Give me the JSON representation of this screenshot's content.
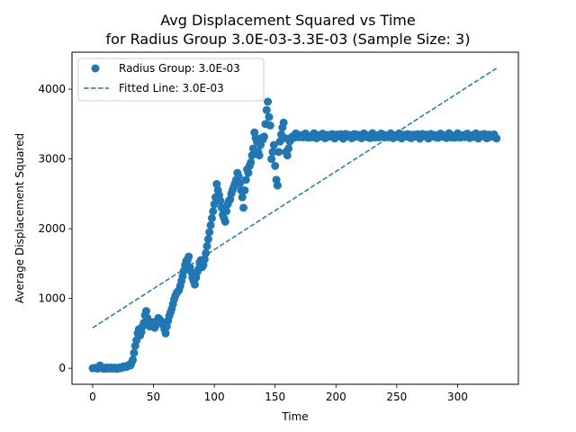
{
  "chart_data": {
    "type": "scatter",
    "title_line1": "Avg Displacement Squared vs Time",
    "title_line2": "for Radius Group 3.0E-03-3.3E-03 (Sample Size: 3)",
    "xlabel": "Time",
    "ylabel": "Average Displacement Squared",
    "xlim": [
      -17,
      350
    ],
    "ylim": [
      -230,
      4530
    ],
    "xticks": [
      0,
      50,
      100,
      150,
      200,
      250,
      300
    ],
    "yticks": [
      0,
      1000,
      2000,
      3000,
      4000
    ],
    "grid": false,
    "legend_position": "upper-left",
    "color": "#1f77b4",
    "series": [
      {
        "name": "Radius Group: 3.0E-03",
        "kind": "scatter",
        "points": [
          [
            0,
            0
          ],
          [
            2,
            5
          ],
          [
            4,
            -5
          ],
          [
            5,
            15
          ],
          [
            6,
            40
          ],
          [
            7,
            10
          ],
          [
            8,
            0
          ],
          [
            9,
            -8
          ],
          [
            10,
            5
          ],
          [
            11,
            -5
          ],
          [
            12,
            10
          ],
          [
            13,
            2
          ],
          [
            14,
            -5
          ],
          [
            15,
            10
          ],
          [
            16,
            0
          ],
          [
            17,
            -5
          ],
          [
            18,
            8
          ],
          [
            19,
            2
          ],
          [
            20,
            -8
          ],
          [
            21,
            5
          ],
          [
            22,
            12
          ],
          [
            23,
            0
          ],
          [
            24,
            10
          ],
          [
            25,
            25
          ],
          [
            26,
            15
          ],
          [
            27,
            30
          ],
          [
            28,
            20
          ],
          [
            29,
            35
          ],
          [
            30,
            50
          ],
          [
            31,
            40
          ],
          [
            32,
            80
          ],
          [
            33,
            120
          ],
          [
            34,
            220
          ],
          [
            35,
            320
          ],
          [
            36,
            400
          ],
          [
            37,
            500
          ],
          [
            38,
            560
          ],
          [
            39,
            470
          ],
          [
            40,
            520
          ],
          [
            41,
            600
          ],
          [
            42,
            650
          ],
          [
            43,
            760
          ],
          [
            44,
            820
          ],
          [
            45,
            720
          ],
          [
            46,
            650
          ],
          [
            47,
            600
          ],
          [
            48,
            620
          ],
          [
            49,
            660
          ],
          [
            50,
            600
          ],
          [
            51,
            580
          ],
          [
            52,
            620
          ],
          [
            53,
            680
          ],
          [
            54,
            720
          ],
          [
            55,
            700
          ],
          [
            56,
            680
          ],
          [
            57,
            660
          ],
          [
            58,
            620
          ],
          [
            59,
            560
          ],
          [
            60,
            500
          ],
          [
            61,
            600
          ],
          [
            62,
            680
          ],
          [
            63,
            750
          ],
          [
            64,
            800
          ],
          [
            65,
            850
          ],
          [
            66,
            920
          ],
          [
            67,
            990
          ],
          [
            68,
            1040
          ],
          [
            69,
            1080
          ],
          [
            70,
            1100
          ],
          [
            71,
            1120
          ],
          [
            72,
            1180
          ],
          [
            73,
            1250
          ],
          [
            74,
            1320
          ],
          [
            75,
            1400
          ],
          [
            76,
            1480
          ],
          [
            77,
            1540
          ],
          [
            78,
            1550
          ],
          [
            79,
            1600
          ],
          [
            80,
            1450
          ],
          [
            81,
            1380
          ],
          [
            82,
            1300
          ],
          [
            83,
            1250
          ],
          [
            84,
            1200
          ],
          [
            85,
            1300
          ],
          [
            86,
            1380
          ],
          [
            87,
            1420
          ],
          [
            88,
            1500
          ],
          [
            89,
            1550
          ],
          [
            90,
            1450
          ],
          [
            91,
            1480
          ],
          [
            92,
            1560
          ],
          [
            93,
            1650
          ],
          [
            94,
            1750
          ],
          [
            95,
            1850
          ],
          [
            96,
            1950
          ],
          [
            97,
            2050
          ],
          [
            98,
            2150
          ],
          [
            99,
            2250
          ],
          [
            100,
            2350
          ],
          [
            101,
            2450
          ],
          [
            102,
            2640
          ],
          [
            103,
            2550
          ],
          [
            104,
            2480
          ],
          [
            105,
            2400
          ],
          [
            106,
            2300
          ],
          [
            107,
            2200
          ],
          [
            108,
            2150
          ],
          [
            109,
            2100
          ],
          [
            110,
            2250
          ],
          [
            111,
            2350
          ],
          [
            112,
            2400
          ],
          [
            113,
            2420
          ],
          [
            114,
            2500
          ],
          [
            115,
            2550
          ],
          [
            116,
            2600
          ],
          [
            117,
            2650
          ],
          [
            118,
            2700
          ],
          [
            119,
            2800
          ],
          [
            120,
            2750
          ],
          [
            121,
            2650
          ],
          [
            122,
            2550
          ],
          [
            123,
            2450
          ],
          [
            124,
            2300
          ],
          [
            125,
            2550
          ],
          [
            126,
            2700
          ],
          [
            127,
            2850
          ],
          [
            128,
            2800
          ],
          [
            129,
            2900
          ],
          [
            130,
            2950
          ],
          [
            131,
            3050
          ],
          [
            132,
            3150
          ],
          [
            133,
            3380
          ],
          [
            134,
            3300
          ],
          [
            135,
            3250
          ],
          [
            136,
            3100
          ],
          [
            137,
            3050
          ],
          [
            138,
            3200
          ],
          [
            139,
            3300
          ],
          [
            140,
            3280
          ],
          [
            141,
            3320
          ],
          [
            142,
            3500
          ],
          [
            143,
            3700
          ],
          [
            144,
            3820
          ],
          [
            145,
            3600
          ],
          [
            146,
            3480
          ],
          [
            147,
            3000
          ],
          [
            148,
            3100
          ],
          [
            149,
            3200
          ],
          [
            150,
            2900
          ],
          [
            151,
            2700
          ],
          [
            152,
            2620
          ],
          [
            153,
            3100
          ],
          [
            154,
            3250
          ],
          [
            155,
            3350
          ],
          [
            156,
            3450
          ],
          [
            157,
            3520
          ],
          [
            158,
            3300
          ],
          [
            159,
            3100
          ],
          [
            160,
            3050
          ],
          [
            161,
            3150
          ],
          [
            162,
            3250
          ],
          [
            163,
            3300
          ],
          [
            164,
            3320
          ]
        ]
      },
      {
        "name": "Fitted Line: 3.0E-03",
        "kind": "dashed-line",
        "points": [
          [
            0,
            580
          ],
          [
            332,
            4300
          ]
        ]
      }
    ],
    "plateau": {
      "x_start": 165,
      "x_end": 332,
      "y_center": 3330,
      "y_spread": 40
    }
  }
}
